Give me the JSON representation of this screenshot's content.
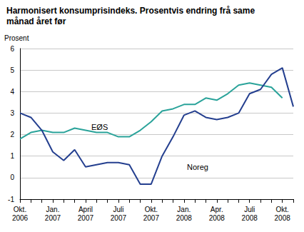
{
  "chart_data": {
    "type": "line",
    "title": "Harmonisert konsumprisindeks. Prosentvis endring frå same\nmånad året før",
    "y_label": "Prosent",
    "categories": [
      "Okt.\n2006",
      null,
      null,
      "Jan.\n2007",
      null,
      null,
      "April\n2007",
      null,
      null,
      "Juli\n2007",
      null,
      null,
      "Okt.\n2007",
      null,
      null,
      "Jan.\n2008",
      null,
      null,
      "Apr.\n2008",
      null,
      null,
      "Juli\n2008",
      null,
      null,
      "Okt.\n2008",
      null
    ],
    "series": [
      {
        "name": "EØS",
        "color": "#2aa39a",
        "values": [
          1.8,
          2.1,
          2.2,
          2.1,
          2.1,
          2.3,
          2.2,
          2.1,
          2.1,
          1.9,
          1.9,
          2.2,
          2.6,
          3.1,
          3.2,
          3.4,
          3.4,
          3.7,
          3.6,
          3.9,
          4.3,
          4.4,
          4.3,
          4.2,
          3.7,
          null
        ]
      },
      {
        "name": "Noreg",
        "color": "#243f8f",
        "values": [
          3.0,
          2.8,
          2.2,
          1.2,
          0.8,
          1.3,
          0.5,
          0.6,
          0.7,
          0.7,
          0.6,
          -0.3,
          -0.3,
          1.0,
          1.9,
          2.9,
          3.1,
          2.8,
          2.7,
          2.8,
          3.0,
          3.9,
          4.1,
          4.8,
          5.1,
          3.3
        ]
      }
    ],
    "ylim": [
      -1,
      6
    ],
    "yticks": [
      -1,
      0,
      1,
      2,
      3,
      4,
      5,
      6
    ],
    "grid": true
  }
}
